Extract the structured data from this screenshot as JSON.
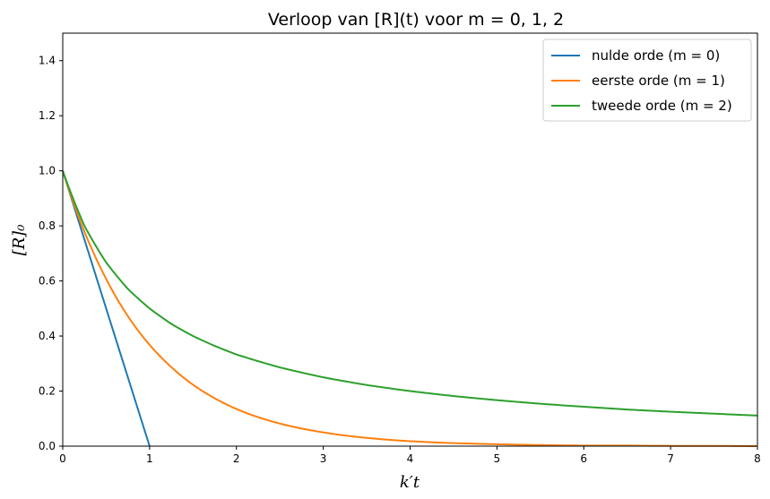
{
  "chart_data": {
    "type": "line",
    "title": "Verloop van [R](t) voor m = 0, 1, 2",
    "xlabel": "k′t",
    "ylabel": "[R]₀",
    "xlim": [
      0,
      8
    ],
    "ylim": [
      0,
      1.5
    ],
    "x_ticks": [
      "0",
      "1",
      "2",
      "3",
      "4",
      "5",
      "6",
      "7",
      "8"
    ],
    "y_ticks": [
      "0.0",
      "0.2",
      "0.4",
      "0.6",
      "0.8",
      "1.0",
      "1.2",
      "1.4"
    ],
    "grid": false,
    "legend_position": "top-right",
    "series": [
      {
        "name": "nulde orde (m = 0)",
        "color": "#1f77b4",
        "x": [
          0,
          1
        ],
        "y": [
          1.0,
          0.0
        ]
      },
      {
        "name": "eerste orde (m = 1)",
        "color": "#ff7f0e",
        "x": [
          0,
          0.25,
          0.5,
          0.75,
          1,
          1.25,
          1.5,
          1.75,
          2,
          2.5,
          3,
          3.5,
          4,
          4.5,
          5,
          5.5,
          6,
          6.5,
          7,
          7.5,
          8
        ],
        "y": [
          1.0,
          0.779,
          0.607,
          0.472,
          0.368,
          0.287,
          0.223,
          0.174,
          0.135,
          0.082,
          0.05,
          0.03,
          0.018,
          0.011,
          0.007,
          0.004,
          0.002,
          0.002,
          0.001,
          0.001,
          0.0
        ]
      },
      {
        "name": "tweede orde (m = 2)",
        "color": "#2ca02c",
        "x": [
          0,
          0.25,
          0.5,
          0.75,
          1,
          1.25,
          1.5,
          1.75,
          2,
          2.5,
          3,
          3.5,
          4,
          4.5,
          5,
          5.5,
          6,
          6.5,
          7,
          7.5,
          8
        ],
        "y": [
          1.0,
          0.8,
          0.667,
          0.571,
          0.5,
          0.444,
          0.4,
          0.364,
          0.333,
          0.286,
          0.25,
          0.222,
          0.2,
          0.182,
          0.167,
          0.154,
          0.143,
          0.133,
          0.125,
          0.118,
          0.111
        ]
      }
    ]
  }
}
